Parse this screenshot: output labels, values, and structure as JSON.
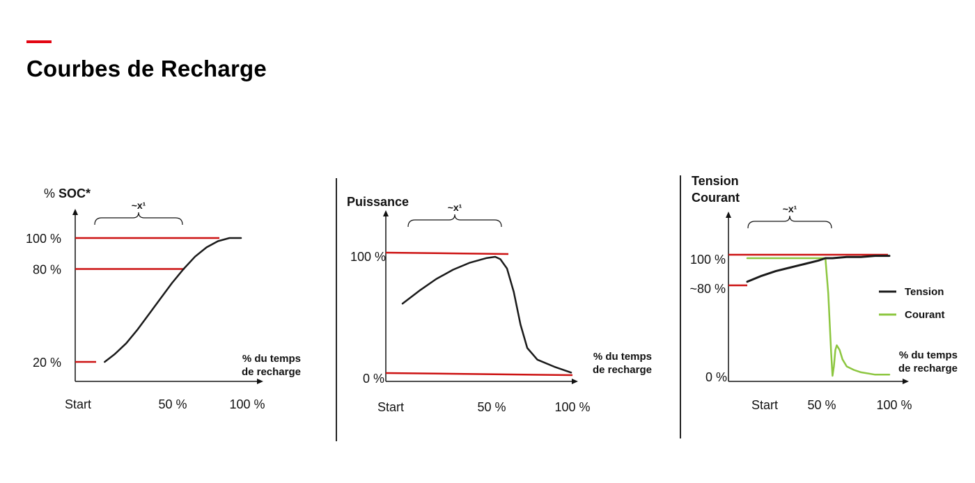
{
  "page": {
    "title": "Courbes de Recharge"
  },
  "colors": {
    "accent": "#e30613",
    "reference_line": "#cc1111",
    "curve": "#1a1a1a",
    "courant": "#8cc63f"
  },
  "chart_data": [
    {
      "type": "line",
      "ylabel_parts": [
        "% ",
        "SOC*"
      ],
      "xlabel_lines": [
        "% du temps",
        "de recharge"
      ],
      "brace_label": "~x¹",
      "x_tick_labels": [
        "Start",
        "50 %",
        "100 %"
      ],
      "y_tick_labels": [
        "100 %",
        "80 %",
        "20 %"
      ],
      "reference_levels": [
        100,
        80,
        20
      ],
      "series": [
        {
          "x": [
            5,
            12,
            20,
            28,
            36,
            44,
            52,
            60,
            68,
            76,
            84,
            92,
            100
          ],
          "values": [
            20,
            25,
            32,
            41,
            51,
            61,
            71,
            80,
            88,
            94,
            98,
            100,
            100
          ]
        }
      ]
    },
    {
      "type": "line",
      "ylabel": "Puissance",
      "xlabel_lines": [
        "% du temps",
        "de recharge"
      ],
      "brace_label": "~x¹",
      "x_tick_labels": [
        "Start",
        "50 %",
        "100 %"
      ],
      "y_tick_labels": [
        "100 %",
        "0 %"
      ],
      "reference_levels": [
        100,
        0
      ],
      "series": [
        {
          "x": [
            0,
            10,
            20,
            30,
            40,
            50,
            55,
            58,
            62,
            66,
            70,
            74,
            80,
            90,
            100
          ],
          "values": [
            60,
            71,
            81,
            89,
            95,
            99,
            100,
            98,
            90,
            70,
            42,
            22,
            12,
            6,
            1
          ]
        }
      ]
    },
    {
      "type": "line",
      "ylabel_lines": [
        "Tension",
        "Courant"
      ],
      "xlabel_lines": [
        "% du temps",
        "de recharge"
      ],
      "brace_label": "~x¹",
      "x_tick_labels": [
        "Start",
        "50 %",
        "100 %"
      ],
      "y_tick_labels": [
        "100 %",
        "~80 %",
        "0 %"
      ],
      "reference_levels": [
        100,
        80
      ],
      "legend": {
        "position": "right",
        "entries": [
          "Tension",
          "Courant"
        ]
      },
      "series": [
        {
          "name": "Tension",
          "x": [
            0,
            10,
            20,
            30,
            40,
            50,
            55,
            60,
            70,
            80,
            90,
            100
          ],
          "values": [
            80,
            85,
            89,
            92,
            95,
            98,
            100,
            100,
            101,
            101,
            102,
            102
          ]
        },
        {
          "name": "Courant",
          "x": [
            0,
            10,
            20,
            30,
            40,
            50,
            55,
            57,
            59,
            60,
            61,
            62,
            63,
            65,
            67,
            70,
            75,
            80,
            90,
            100
          ],
          "values": [
            100,
            100,
            100,
            100,
            100,
            100,
            100,
            70,
            20,
            0,
            8,
            22,
            26,
            22,
            14,
            8,
            5,
            3,
            1,
            1
          ]
        }
      ]
    }
  ]
}
